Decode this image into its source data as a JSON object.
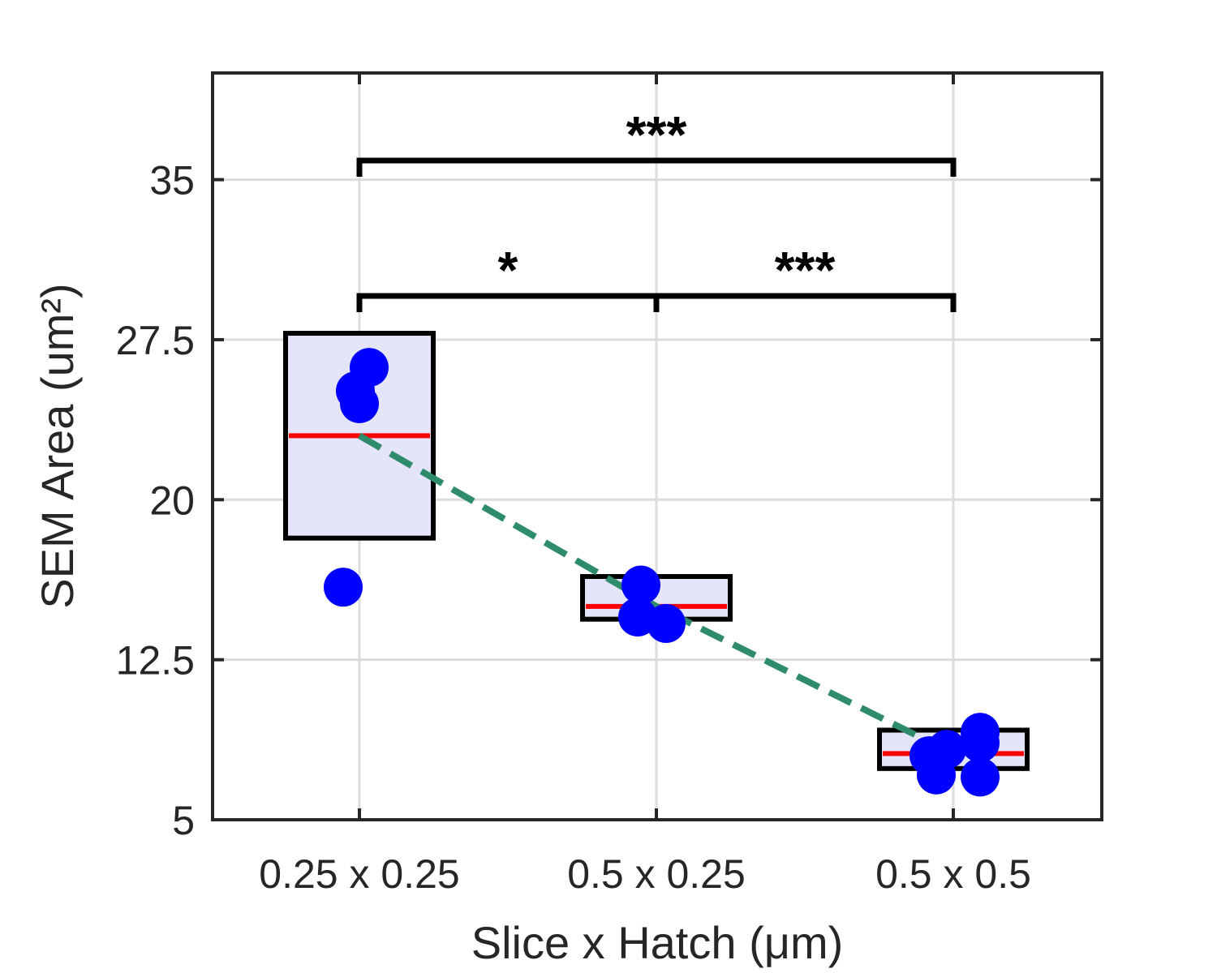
{
  "chart_data": {
    "type": "box",
    "xlabel": "Slice x Hatch (μm)",
    "ylabel": "SEM Area (um²)",
    "categories": [
      "0.25 x 0.25",
      "0.5 x 0.25",
      "0.5 x 0.5"
    ],
    "ylim": [
      5,
      40
    ],
    "yticks": [
      5,
      12.5,
      20,
      27.5,
      35
    ],
    "ytick_labels": [
      "5",
      "12.5",
      "20",
      "27.5",
      "35"
    ],
    "grid": true,
    "boxes": [
      {
        "category": "0.25 x 0.25",
        "q1": 18.2,
        "q3": 27.8,
        "median": 23.0
      },
      {
        "category": "0.5 x 0.25",
        "q1": 14.4,
        "q3": 16.4,
        "median": 15.0
      },
      {
        "category": "0.5 x 0.5",
        "q1": 7.4,
        "q3": 9.2,
        "median": 8.1
      }
    ],
    "points": [
      {
        "category": "0.25 x 0.25",
        "values": [
          26.2,
          25.1,
          24.5,
          15.9
        ]
      },
      {
        "category": "0.5 x 0.25",
        "values": [
          16.0,
          14.5,
          14.2
        ]
      },
      {
        "category": "0.5 x 0.5",
        "values": [
          9.1,
          8.6,
          8.3,
          8.0,
          7.1,
          7.0
        ]
      }
    ],
    "trend_line": {
      "style": "dashed",
      "values": [
        23.0,
        15.0,
        8.1
      ]
    },
    "significance": [
      {
        "from": "0.25 x 0.25",
        "to": "0.5 x 0.25",
        "label": "*"
      },
      {
        "from": "0.5 x 0.25",
        "to": "0.5 x 0.5",
        "label": "***"
      },
      {
        "from": "0.25 x 0.25",
        "to": "0.5 x 0.5",
        "label": "***"
      }
    ],
    "colors": {
      "box_fill": "#e4e4fb",
      "box_edge": "#000000",
      "median": "#ff0000",
      "points": "#0000ff",
      "trend": "#2e8b6b",
      "grid": "#dcdcdc",
      "axes": "#262626",
      "bracket": "#000000"
    }
  }
}
